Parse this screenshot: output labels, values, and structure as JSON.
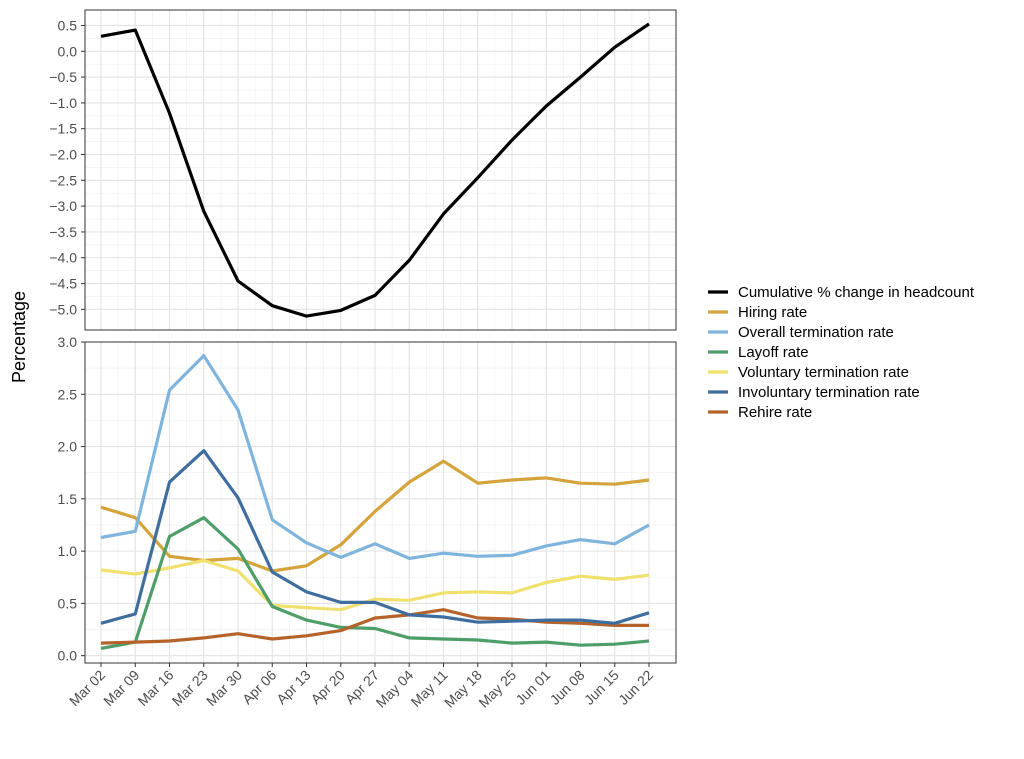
{
  "ylabel": "Percentage",
  "x_categories": [
    "Mar 02",
    "Mar 09",
    "Mar 16",
    "Mar 23",
    "Mar 30",
    "Apr 06",
    "Apr 13",
    "Apr 20",
    "Apr 27",
    "May 04",
    "May 11",
    "May 18",
    "May 25",
    "Jun 01",
    "Jun 08",
    "Jun 15",
    "Jun 22"
  ],
  "legend": [
    {
      "label": "Cumulative % change in headcount",
      "color": "#000000"
    },
    {
      "label": "Hiring rate",
      "color": "#D4A33A"
    },
    {
      "label": "Overall termination rate",
      "color": "#7FB5DD"
    },
    {
      "label": "Layoff rate",
      "color": "#4E9E6A"
    },
    {
      "label": "Voluntary termination rate",
      "color": "#F0E06E"
    },
    {
      "label": "Involuntary termination rate",
      "color": "#3F6E9E"
    },
    {
      "label": "Rehire rate",
      "color": "#B5632A"
    }
  ],
  "chart_data": [
    {
      "type": "line",
      "panel": "top",
      "x": [
        "Mar 02",
        "Mar 09",
        "Mar 16",
        "Mar 23",
        "Mar 30",
        "Apr 06",
        "Apr 13",
        "Apr 20",
        "Apr 27",
        "May 04",
        "May 11",
        "May 18",
        "May 25",
        "Jun 01",
        "Jun 08",
        "Jun 15",
        "Jun 22"
      ],
      "ylim": [
        -5.4,
        0.8
      ],
      "yticks": [
        0.5,
        0.0,
        -0.5,
        -1.0,
        -1.5,
        -2.0,
        -2.5,
        -3.0,
        -3.5,
        -4.0,
        -4.5,
        -5.0
      ],
      "ytick_labels": [
        "0.5",
        "0.0",
        "−0.5",
        "−1.0",
        "−1.5",
        "−2.0",
        "−2.5",
        "−3.0",
        "−3.5",
        "−4.0",
        "−4.5",
        "−5.0"
      ],
      "grid": true,
      "series": [
        {
          "name": "Cumulative % change in headcount",
          "color": "#000000",
          "values": [
            0.29,
            0.41,
            -1.2,
            -3.1,
            -4.45,
            -4.93,
            -5.13,
            -5.02,
            -4.73,
            -4.05,
            -3.15,
            -2.45,
            -1.72,
            -1.06,
            -0.5,
            0.08,
            0.53
          ]
        }
      ]
    },
    {
      "type": "line",
      "panel": "bottom",
      "x": [
        "Mar 02",
        "Mar 09",
        "Mar 16",
        "Mar 23",
        "Mar 30",
        "Apr 06",
        "Apr 13",
        "Apr 20",
        "Apr 27",
        "May 04",
        "May 11",
        "May 18",
        "May 25",
        "Jun 01",
        "Jun 08",
        "Jun 15",
        "Jun 22"
      ],
      "ylim": [
        -0.07,
        3.0
      ],
      "yticks": [
        0.0,
        0.5,
        1.0,
        1.5,
        2.0,
        2.5,
        3.0
      ],
      "ytick_labels": [
        "0.0",
        "0.5",
        "1.0",
        "1.5",
        "2.0",
        "2.5",
        "3.0"
      ],
      "grid": true,
      "series": [
        {
          "name": "Hiring rate",
          "color": "#D4A33A",
          "values": [
            1.42,
            1.32,
            0.95,
            0.91,
            0.93,
            0.81,
            0.86,
            1.06,
            1.38,
            1.66,
            1.86,
            1.65,
            1.68,
            1.7,
            1.65,
            1.64,
            1.68
          ]
        },
        {
          "name": "Voluntary termination rate",
          "color": "#F0E06E",
          "values": [
            0.82,
            0.78,
            0.84,
            0.91,
            0.81,
            0.48,
            0.46,
            0.44,
            0.54,
            0.53,
            0.6,
            0.61,
            0.6,
            0.7,
            0.76,
            0.73,
            0.77
          ]
        },
        {
          "name": "Layoff rate",
          "color": "#4E9E6A",
          "values": [
            0.07,
            0.13,
            1.14,
            1.32,
            1.02,
            0.47,
            0.34,
            0.27,
            0.26,
            0.17,
            0.16,
            0.15,
            0.12,
            0.13,
            0.1,
            0.11,
            0.14
          ]
        },
        {
          "name": "Rehire rate",
          "color": "#B5632A",
          "values": [
            0.12,
            0.13,
            0.14,
            0.17,
            0.21,
            0.16,
            0.19,
            0.24,
            0.36,
            0.39,
            0.44,
            0.36,
            0.35,
            0.32,
            0.31,
            0.29,
            0.29
          ]
        },
        {
          "name": "Involuntary termination rate",
          "color": "#3F6E9E",
          "values": [
            0.31,
            0.4,
            1.66,
            1.96,
            1.51,
            0.8,
            0.61,
            0.51,
            0.51,
            0.39,
            0.37,
            0.32,
            0.33,
            0.34,
            0.34,
            0.31,
            0.41
          ]
        },
        {
          "name": "Overall termination rate",
          "color": "#7FB5DD",
          "values": [
            1.13,
            1.19,
            2.54,
            2.87,
            2.35,
            1.3,
            1.08,
            0.94,
            1.07,
            0.93,
            0.98,
            0.95,
            0.96,
            1.05,
            1.11,
            1.07,
            1.25
          ]
        }
      ]
    }
  ]
}
